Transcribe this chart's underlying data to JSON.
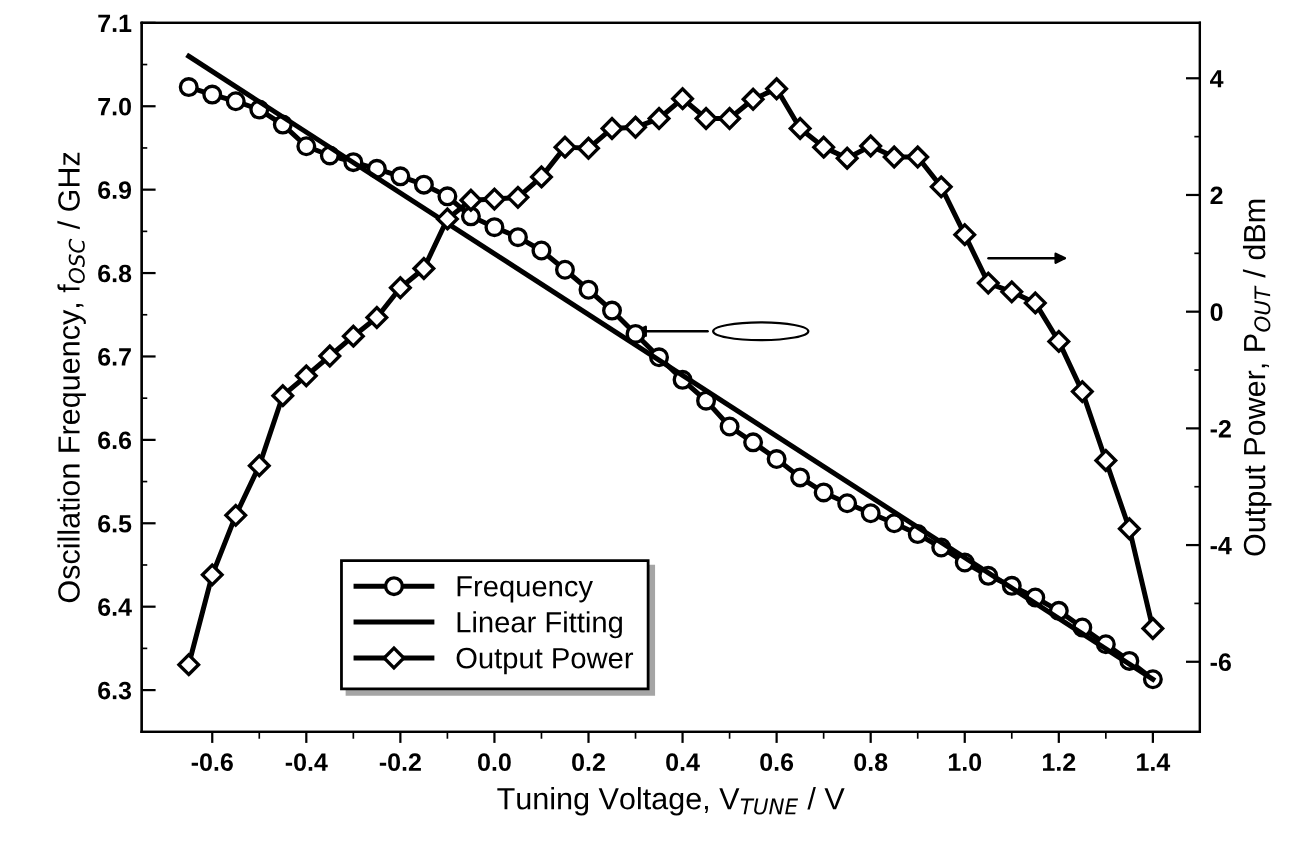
{
  "chart_data": {
    "type": "line",
    "xlabel": "Tuning Voltage, V$_{TUNE}$ / V",
    "ylabel": "Oscillation Frequency, f$_{OSC}$ / GHz",
    "y2label": "Output Power, P$_{OUT}$ / dBm",
    "x": [
      -0.65,
      -0.6,
      -0.55,
      -0.5,
      -0.45,
      -0.4,
      -0.35,
      -0.3,
      -0.25,
      -0.2,
      -0.15,
      -0.1,
      -0.05,
      0.0,
      0.05,
      0.1,
      0.15,
      0.2,
      0.25,
      0.3,
      0.35,
      0.4,
      0.45,
      0.5,
      0.55,
      0.6,
      0.65,
      0.7,
      0.75,
      0.8,
      0.85,
      0.9,
      0.95,
      1.0,
      1.05,
      1.1,
      1.15,
      1.2,
      1.25,
      1.3,
      1.35,
      1.4
    ],
    "series": [
      {
        "name": "Frequency",
        "color": "#000000",
        "marker": "circle",
        "values": [
          7.023,
          7.014,
          7.006,
          6.996,
          6.978,
          6.952,
          6.941,
          6.933,
          6.925,
          6.916,
          6.906,
          6.892,
          6.868,
          6.855,
          6.843,
          6.827,
          6.804,
          6.78,
          6.755,
          6.727,
          6.699,
          6.672,
          6.647,
          6.616,
          6.597,
          6.577,
          6.555,
          6.537,
          6.524,
          6.512,
          6.5,
          6.487,
          6.471,
          6.453,
          6.437,
          6.425,
          6.411,
          6.395,
          6.375,
          6.355,
          6.335,
          6.313
        ]
      },
      {
        "name": "Linear Fitting",
        "color": "#000000",
        "marker": "none",
        "x": [
          -0.65,
          1.4
        ],
        "values": [
          7.06,
          6.313
        ]
      },
      {
        "name": "Output Power",
        "color": "#000000",
        "marker": "diamond",
        "axis": "y2",
        "values": [
          -6.05,
          -4.51,
          -3.49,
          -2.64,
          -1.44,
          -1.1,
          -0.76,
          -0.42,
          -0.1,
          0.41,
          0.74,
          1.59,
          1.91,
          1.93,
          1.96,
          2.31,
          2.82,
          2.8,
          3.14,
          3.16,
          3.31,
          3.65,
          3.31,
          3.31,
          3.64,
          3.82,
          3.14,
          2.82,
          2.63,
          2.84,
          2.65,
          2.65,
          2.14,
          1.32,
          0.49,
          0.34,
          0.15,
          -0.51,
          -1.37,
          -2.55,
          -3.72,
          -5.43
        ]
      }
    ],
    "xlim": [
      -0.75,
      1.5
    ],
    "xticks": [
      -0.6,
      -0.4,
      -0.2,
      {
        "value": 0,
        "label": "0.0"
      },
      0.2,
      0.4,
      0.6,
      0.8,
      {
        "value": 1,
        "label": "1.0"
      },
      1.2,
      1.4
    ],
    "ylim": [
      6.25,
      7.1
    ],
    "yticks": [
      6.3,
      6.4,
      6.5,
      6.6,
      6.7,
      6.8,
      6.9,
      {
        "value": 7,
        "label": "7.0"
      },
      7.1
    ],
    "y2lim": [
      -7.2,
      4.95
    ],
    "y2ticks": [
      -6,
      -4,
      -2,
      0,
      2,
      4
    ],
    "legend": "bottom left",
    "grid": false,
    "line_style": "solid"
  }
}
